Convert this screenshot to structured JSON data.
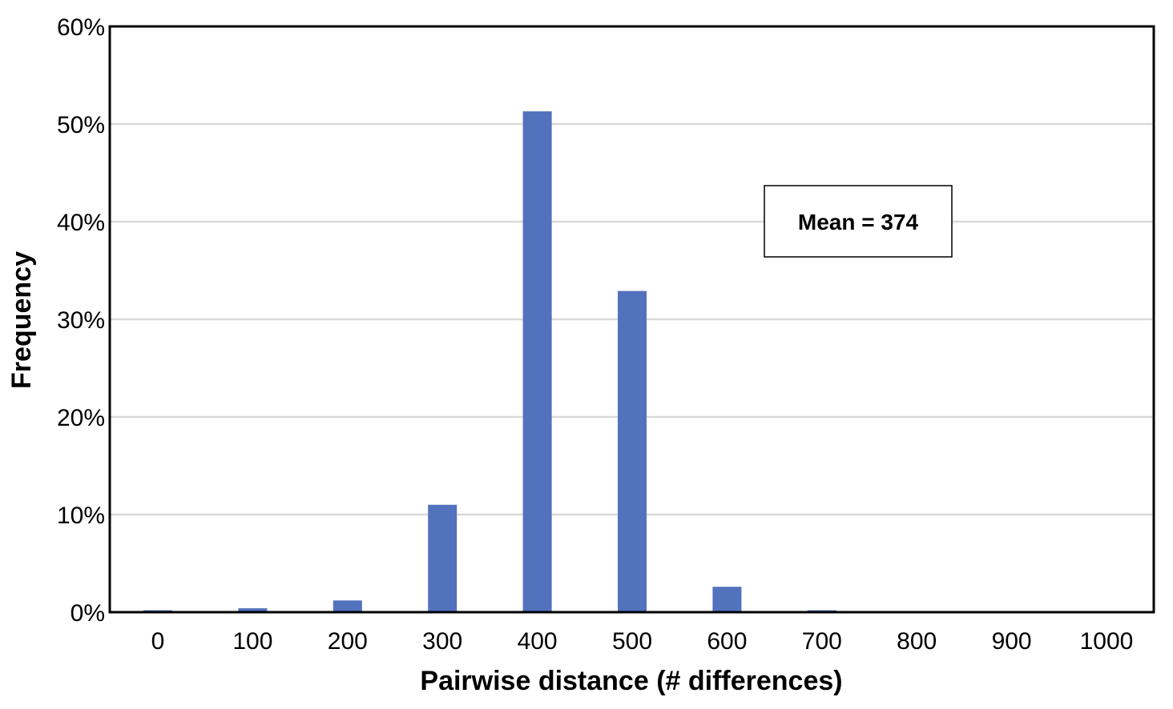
{
  "chart_data": {
    "type": "bar",
    "categories": [
      "0",
      "100",
      "200",
      "300",
      "400",
      "500",
      "600",
      "700",
      "800",
      "900",
      "1000"
    ],
    "values": [
      0.2,
      0.4,
      1.2,
      11.0,
      51.3,
      32.9,
      2.6,
      0.2,
      0,
      0,
      0
    ],
    "xlabel": "Pairwise distance (# differences)",
    "ylabel": "Frequency",
    "ylim": [
      0,
      60
    ],
    "yticks": [
      0,
      10,
      20,
      30,
      40,
      50,
      60
    ],
    "ytick_format": "percent",
    "bar_color": "#5272bd",
    "grid": true,
    "annotation": "Mean = 374",
    "annotation_placement": "upper-right"
  }
}
